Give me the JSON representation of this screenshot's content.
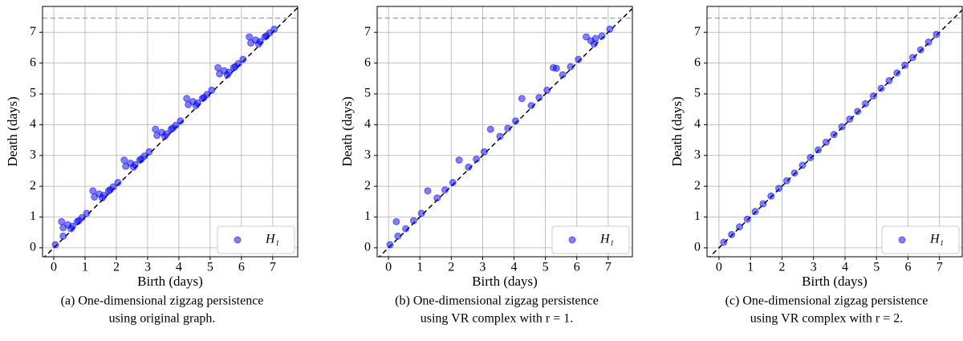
{
  "chart_data": [
    {
      "type": "scatter",
      "xlabel": "Birth (days)",
      "ylabel": "Death (days)",
      "caption": [
        "(a) One-dimensional zigzag persistence",
        "using original graph."
      ],
      "xlim": [
        -0.36,
        7.8
      ],
      "ylim": [
        -0.29,
        7.84
      ],
      "xticks": [
        0,
        1,
        2,
        3,
        4,
        5,
        6,
        7
      ],
      "yticks": [
        0,
        1,
        2,
        3,
        4,
        5,
        6,
        7
      ],
      "grid": true,
      "legend": "lower right",
      "diagonal": true,
      "inf_line": 7.46,
      "x": [
        0.05,
        0.3,
        0.55,
        0.8,
        1.05,
        1.55,
        1.8,
        2.05,
        2.55,
        2.8,
        3.05,
        3.55,
        3.8,
        4.05,
        4.55,
        4.8,
        5.05,
        5.55,
        5.8,
        6.05,
        6.55,
        6.8,
        7.05,
        0.25,
        0.3,
        0.45,
        0.6,
        0.75,
        0.9,
        1.25,
        1.3,
        1.45,
        1.6,
        1.75,
        1.9,
        2.25,
        2.3,
        2.45,
        2.6,
        2.75,
        2.9,
        3.25,
        3.3,
        3.45,
        3.6,
        3.75,
        3.9,
        4.25,
        4.3,
        4.45,
        4.6,
        4.75,
        4.9,
        5.25,
        5.3,
        5.45,
        5.6,
        5.75,
        5.9,
        6.25,
        6.3,
        6.45,
        6.6,
        6.75,
        6.9
      ],
      "series": [
        {
          "name": "H₁",
          "color": "#0000ff",
          "values": [
            0.1,
            0.38,
            0.62,
            0.88,
            1.12,
            1.62,
            1.88,
            2.12,
            2.62,
            2.88,
            3.12,
            3.62,
            3.88,
            4.12,
            4.62,
            4.88,
            5.12,
            5.62,
            5.88,
            6.12,
            6.62,
            6.88,
            7.1,
            0.85,
            0.65,
            0.75,
            0.7,
            0.85,
            0.98,
            1.85,
            1.65,
            1.75,
            1.7,
            1.85,
            1.98,
            2.85,
            2.65,
            2.75,
            2.7,
            2.85,
            2.98,
            3.85,
            3.65,
            3.75,
            3.7,
            3.85,
            3.98,
            4.85,
            4.65,
            4.75,
            4.7,
            4.85,
            4.98,
            5.85,
            5.65,
            5.75,
            5.7,
            5.85,
            5.98,
            6.85,
            6.65,
            6.75,
            6.7,
            6.85,
            6.98
          ]
        }
      ]
    },
    {
      "type": "scatter",
      "xlabel": "Birth (days)",
      "ylabel": "Death (days)",
      "caption": [
        "(b) One-dimensional zigzag persistence",
        "using VR complex with r = 1."
      ],
      "xlim": [
        -0.36,
        7.77
      ],
      "ylim": [
        -0.29,
        7.84
      ],
      "xticks": [
        0,
        1,
        2,
        3,
        4,
        5,
        6,
        7
      ],
      "yticks": [
        0,
        1,
        2,
        3,
        4,
        5,
        6,
        7
      ],
      "grid": true,
      "legend": "lower right",
      "diagonal": true,
      "inf_line": 7.46,
      "x": [
        0.05,
        0.3,
        0.55,
        0.8,
        1.05,
        1.55,
        1.8,
        2.05,
        2.55,
        2.8,
        3.05,
        3.55,
        3.8,
        4.05,
        4.55,
        4.8,
        5.05,
        5.55,
        5.8,
        6.05,
        6.55,
        6.8,
        7.05,
        0.25,
        1.25,
        2.25,
        3.25,
        4.25,
        5.25,
        5.35,
        6.3,
        6.45,
        6.6
      ],
      "series": [
        {
          "name": "H₁",
          "color": "#0000ff",
          "values": [
            0.1,
            0.38,
            0.62,
            0.88,
            1.12,
            1.62,
            1.88,
            2.12,
            2.62,
            2.88,
            3.12,
            3.62,
            3.88,
            4.12,
            4.62,
            4.88,
            5.12,
            5.62,
            5.88,
            6.12,
            6.62,
            6.88,
            7.1,
            0.85,
            1.85,
            2.85,
            3.85,
            4.85,
            5.85,
            5.83,
            6.85,
            6.72,
            6.8
          ]
        }
      ]
    },
    {
      "type": "scatter",
      "xlabel": "Birth (days)",
      "ylabel": "Death (days)",
      "caption": [
        "(c) One-dimensional zigzag persistence",
        "using VR complex with r = 2."
      ],
      "xlim": [
        -0.38,
        7.72
      ],
      "ylim": [
        -0.29,
        7.84
      ],
      "xticks": [
        0,
        1,
        2,
        3,
        4,
        5,
        6,
        7
      ],
      "yticks": [
        0,
        1,
        2,
        3,
        4,
        5,
        6,
        7
      ],
      "grid": true,
      "legend": "lower right",
      "diagonal": true,
      "inf_line": 7.46,
      "x": [
        0.15,
        0.4,
        0.65,
        0.9,
        1.15,
        1.4,
        1.65,
        1.9,
        2.15,
        2.4,
        2.65,
        2.9,
        3.15,
        3.4,
        3.65,
        3.9,
        4.15,
        4.4,
        4.65,
        4.9,
        5.15,
        5.4,
        5.65,
        5.9,
        6.15,
        6.4,
        6.65,
        6.9
      ],
      "series": [
        {
          "name": "H₁",
          "color": "#0000ff",
          "values": [
            0.18,
            0.43,
            0.68,
            0.93,
            1.18,
            1.43,
            1.68,
            1.93,
            2.18,
            2.43,
            2.68,
            2.93,
            3.18,
            3.43,
            3.68,
            3.93,
            4.18,
            4.43,
            4.68,
            4.93,
            5.18,
            5.43,
            5.68,
            5.93,
            6.18,
            6.43,
            6.68,
            6.93
          ]
        }
      ]
    }
  ]
}
